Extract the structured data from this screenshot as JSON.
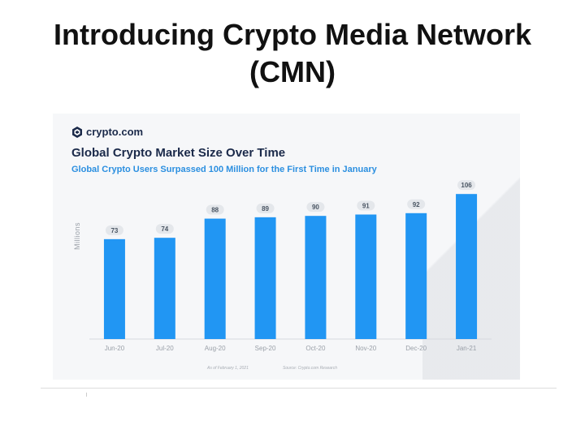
{
  "slide": {
    "title": "Introducing Crypto Media Network (CMN)"
  },
  "card": {
    "brand": "crypto.com",
    "footnote_left": "As of February 1, 2021",
    "footnote_right": "Source: Crypto.com Research"
  },
  "colors": {
    "bar": "#2196f3",
    "title": "#1b2a4a",
    "subtitle": "#2b8fe0",
    "label_pill": "#e4e7eb"
  },
  "chart_data": {
    "type": "bar",
    "title": "Global Crypto Market Size Over Time",
    "subtitle": "Global Crypto Users Surpassed 100 Million for the First Time in January",
    "xlabel": "",
    "ylabel": "Millions",
    "ylim": [
      0,
      115
    ],
    "grid": false,
    "categories": [
      "Jun-20",
      "Jul-20",
      "Aug-20",
      "Sep-20",
      "Oct-20",
      "Nov-20",
      "Dec-20",
      "Jan-21"
    ],
    "values": [
      73,
      74,
      88,
      89,
      90,
      91,
      92,
      106
    ]
  }
}
